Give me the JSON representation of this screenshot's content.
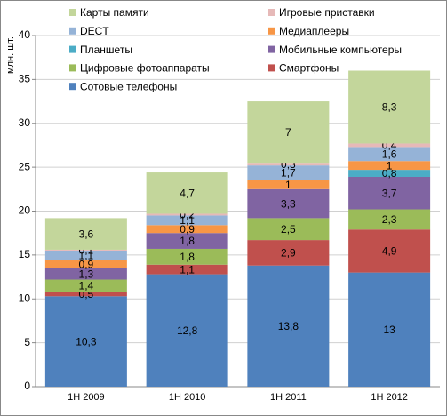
{
  "chart_data": {
    "type": "stacked_bar",
    "y_label": "млн. шт.",
    "categories": [
      "1H 2009",
      "1H 2010",
      "1H 2011",
      "1H 2012"
    ],
    "ylim": [
      0,
      40
    ],
    "yticks": [
      0,
      5,
      10,
      15,
      20,
      25,
      30,
      35,
      40
    ],
    "grid": true,
    "series": [
      {
        "name": "Сотовые телефоны",
        "color": "#4f81bd",
        "values": [
          10.3,
          12.8,
          13.8,
          13
        ],
        "value_labels": [
          "10,3",
          "12,8",
          "13,8",
          "13"
        ]
      },
      {
        "name": "Смартфоны",
        "color": "#c0504d",
        "values": [
          0.5,
          1.1,
          2.9,
          4.9
        ],
        "value_labels": [
          "0,5",
          "1,1",
          "2,9",
          "4,9"
        ]
      },
      {
        "name": "Цифровые фотоаппараты",
        "color": "#9bbb59",
        "values": [
          1.4,
          1.8,
          2.5,
          2.3
        ],
        "value_labels": [
          "1,4",
          "1,8",
          "2,5",
          "2,3"
        ]
      },
      {
        "name": "Мобильные компьютеры",
        "color": "#8064a2",
        "values": [
          1.3,
          1.8,
          3.3,
          3.7
        ],
        "value_labels": [
          "1,3",
          "1,8",
          "3,3",
          "3,7"
        ]
      },
      {
        "name": "Планшеты",
        "color": "#4bacc6",
        "values": [
          null,
          null,
          null,
          0.8
        ],
        "value_labels": [
          null,
          null,
          null,
          "0,8"
        ]
      },
      {
        "name": "Медиаплееры",
        "color": "#f79646",
        "values": [
          0.9,
          0.9,
          1,
          1
        ],
        "value_labels": [
          "0,9",
          "0,9",
          "1",
          "1"
        ]
      },
      {
        "name": "DECT",
        "color": "#95b3d7",
        "values": [
          1.1,
          1.1,
          1.7,
          1.6
        ],
        "value_labels": [
          "1,1",
          "1,1",
          "1,7",
          "1,6"
        ]
      },
      {
        "name": "Игровые приставки",
        "color": "#e6b9b8",
        "values": [
          0.1,
          0.2,
          0.3,
          0.4
        ],
        "value_labels": [
          "0,1",
          "0,2",
          "0,3",
          "0,4"
        ]
      },
      {
        "name": "Карты памяти",
        "color": "#c3d69b",
        "values": [
          3.6,
          4.7,
          7,
          8.3
        ],
        "value_labels": [
          "3,6",
          "4,7",
          "7",
          "8,3"
        ]
      }
    ]
  }
}
